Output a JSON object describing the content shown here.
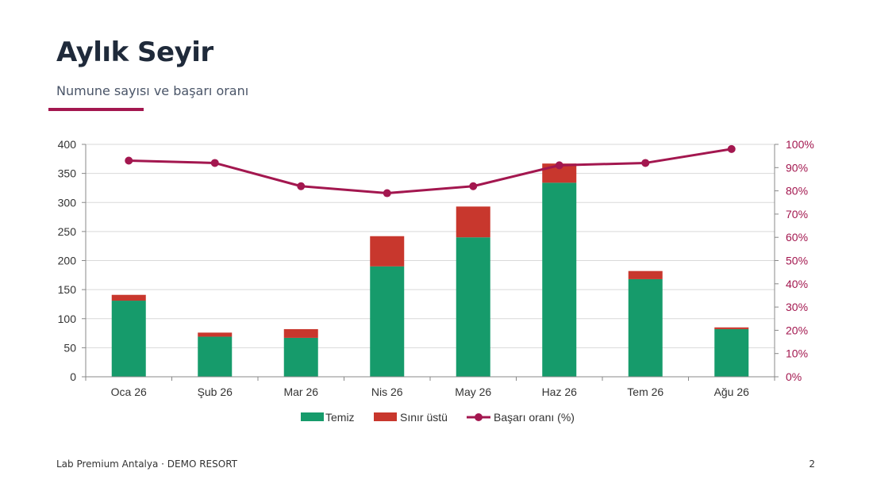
{
  "page": {
    "title": "Aylık Seyir",
    "subtitle": "Numune sayısı ve başarı oranı",
    "footer_left": "Lab Premium Antalya · DEMO RESORT",
    "page_number": "2"
  },
  "colors": {
    "accent": "#a3174f",
    "temiz": "#169b6b",
    "sinir_ustu": "#c8372d",
    "line": "#a3174f",
    "title": "#1f2a3a"
  },
  "chart_data": {
    "type": "bar",
    "stacked": true,
    "categories": [
      "Oca 26",
      "Şub 26",
      "Mar 26",
      "Nis 26",
      "May 26",
      "Haz 26",
      "Tem 26",
      "Ağu 26"
    ],
    "series": [
      {
        "name": "Temiz",
        "type": "bar",
        "axis": "left",
        "values": [
          131,
          69,
          67,
          190,
          240,
          334,
          168,
          82
        ]
      },
      {
        "name": "Sınır üstü",
        "type": "bar",
        "axis": "left",
        "values": [
          10,
          7,
          15,
          52,
          53,
          33,
          14,
          3
        ]
      },
      {
        "name": "Başarı oranı (%)",
        "type": "line",
        "axis": "right",
        "values": [
          93,
          92,
          82,
          79,
          82,
          91,
          92,
          98
        ]
      }
    ],
    "ylim": [
      0,
      400
    ],
    "yticks": [
      0,
      50,
      100,
      150,
      200,
      250,
      300,
      350,
      400
    ],
    "y2lim": [
      0,
      100
    ],
    "y2ticks": [
      "0%",
      "10%",
      "20%",
      "30%",
      "40%",
      "50%",
      "60%",
      "70%",
      "80%",
      "90%",
      "100%"
    ],
    "grid": true,
    "legend_position": "bottom"
  }
}
